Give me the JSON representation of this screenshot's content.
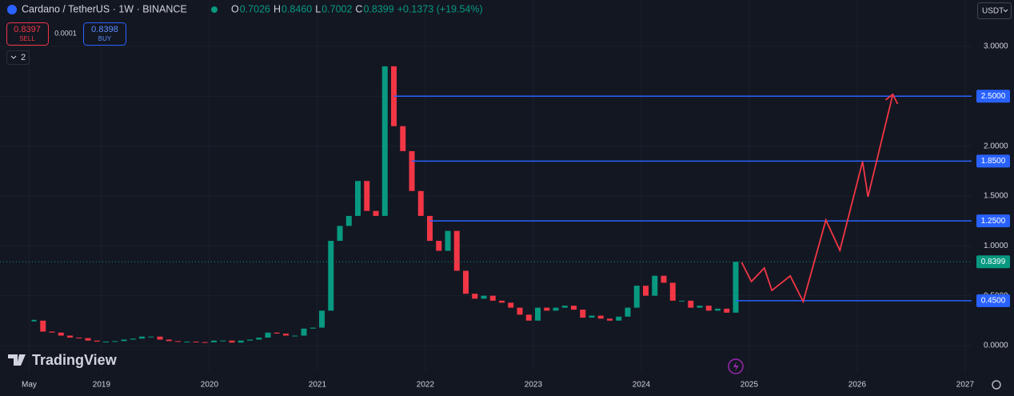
{
  "header": {
    "symbol": "Cardano / TetherUS · 1W · BINANCE",
    "ohlc": [
      {
        "key": "O",
        "value": "0.7026"
      },
      {
        "key": "H",
        "value": "0.8460"
      },
      {
        "key": "L",
        "value": "0.7002"
      },
      {
        "key": "C",
        "value": "0.8399"
      }
    ],
    "change": "+0.1373 (+19.54%)",
    "sell_price": "0.8397",
    "sell_label": "SELL",
    "spread": "0.0001",
    "buy_price": "0.8398",
    "buy_label": "BUY",
    "indicators": "2",
    "currency": "USDT",
    "brand": "TradingView"
  },
  "chart_data": {
    "type": "candlestick",
    "grid": true,
    "x": [
      "2018-05",
      "2018-06",
      "2018-07",
      "2018-08",
      "2018-09",
      "2018-10",
      "2018-11",
      "2018-12",
      "2019-01",
      "2019-02",
      "2019-03",
      "2019-04",
      "2019-05",
      "2019-06",
      "2019-07",
      "2019-08",
      "2019-09",
      "2019-10",
      "2019-11",
      "2019-12",
      "2020-01",
      "2020-02",
      "2020-03",
      "2020-04",
      "2020-05",
      "2020-06",
      "2020-07",
      "2020-08",
      "2020-09",
      "2020-10",
      "2020-11",
      "2020-12",
      "2021-01",
      "2021-02",
      "2021-03",
      "2021-04",
      "2021-05",
      "2021-06",
      "2021-07",
      "2021-08",
      "2021-09",
      "2021-10",
      "2021-11",
      "2021-12",
      "2022-01",
      "2022-02",
      "2022-03",
      "2022-04",
      "2022-05",
      "2022-06",
      "2022-07",
      "2022-08",
      "2022-09",
      "2022-10",
      "2022-11",
      "2022-12",
      "2023-01",
      "2023-02",
      "2023-03",
      "2023-04",
      "2023-05",
      "2023-06",
      "2023-07",
      "2023-08",
      "2023-09",
      "2023-10",
      "2023-11",
      "2023-12",
      "2024-01",
      "2024-02",
      "2024-03",
      "2024-04",
      "2024-05",
      "2024-06",
      "2024-07",
      "2024-08",
      "2024-09",
      "2024-10",
      "2024-11"
    ],
    "series": [
      {
        "name": "ADAUSDT",
        "up_color": "#089981",
        "down_color": "#f23645",
        "values": [
          0.25,
          0.14,
          0.13,
          0.1,
          0.08,
          0.075,
          0.05,
          0.04,
          0.04,
          0.045,
          0.06,
          0.07,
          0.09,
          0.09,
          0.06,
          0.045,
          0.04,
          0.04,
          0.035,
          0.033,
          0.05,
          0.05,
          0.03,
          0.05,
          0.06,
          0.08,
          0.13,
          0.12,
          0.1,
          0.1,
          0.17,
          0.18,
          0.35,
          1.05,
          1.2,
          1.3,
          1.65,
          1.35,
          1.3,
          2.8,
          2.2,
          1.95,
          1.55,
          1.3,
          1.05,
          0.95,
          1.15,
          0.75,
          0.52,
          0.47,
          0.5,
          0.45,
          0.43,
          0.38,
          0.31,
          0.25,
          0.38,
          0.35,
          0.38,
          0.4,
          0.36,
          0.28,
          0.3,
          0.27,
          0.25,
          0.29,
          0.38,
          0.6,
          0.5,
          0.7,
          0.63,
          0.45,
          0.45,
          0.38,
          0.4,
          0.35,
          0.37,
          0.33,
          0.84
        ]
      }
    ],
    "current_price": 0.8399,
    "current_color": "#089981",
    "levels": [
      {
        "value": 2.5,
        "label": "2.5000",
        "start": "2021-09"
      },
      {
        "value": 1.85,
        "label": "1.8500",
        "start": "2021-11"
      },
      {
        "value": 1.25,
        "label": "1.2500",
        "start": "2022-01"
      },
      {
        "value": 0.45,
        "label": "0.4500",
        "start": "2024-11"
      }
    ],
    "level_color": "#2962ff",
    "projection": {
      "color": "#f23645",
      "x": [
        2024.93,
        2025.02,
        2025.14,
        2025.21,
        2025.38,
        2025.5,
        2025.71,
        2025.84,
        2026.05,
        2026.1,
        2026.33
      ],
      "values": [
        0.834,
        0.642,
        0.778,
        0.553,
        0.698,
        0.441,
        1.259,
        0.955,
        1.845,
        1.492,
        2.519
      ]
    },
    "xlim": [
      2018.06,
      2027.06
    ],
    "xticks": [
      {
        "value": 2018.33,
        "label": "May"
      },
      2019,
      2020,
      2021,
      2022,
      2023,
      2024,
      2025,
      2026,
      2027
    ],
    "ylim": [
      -0.265,
      3.465
    ],
    "yticks": [
      {
        "value": 0,
        "label": "0.0000"
      },
      {
        "value": 0.5,
        "label": "0.5000"
      },
      {
        "value": 1,
        "label": "1.0000"
      },
      {
        "value": 1.5,
        "label": "1.5000"
      },
      {
        "value": 2,
        "label": "2.0000"
      },
      {
        "value": 2.5,
        "label": "2.5000"
      },
      {
        "value": 3,
        "label": "3.0000"
      }
    ]
  }
}
